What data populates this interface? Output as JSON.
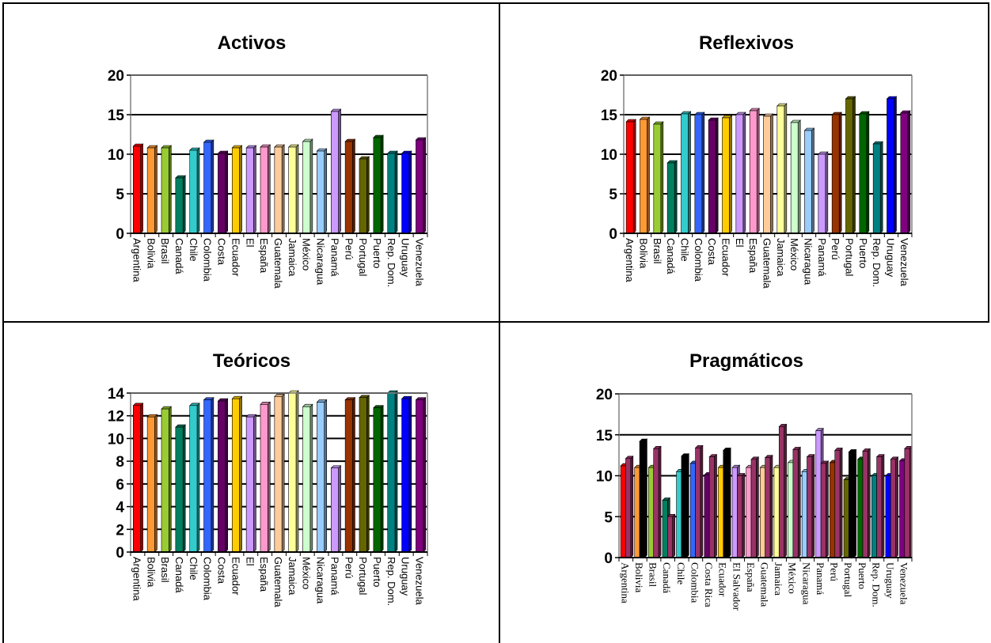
{
  "chart_data": [
    {
      "type": "bar",
      "title": "Activos",
      "ylim": [
        0,
        20
      ],
      "yticks": [
        0,
        5,
        10,
        15,
        20
      ],
      "grid": true,
      "categories": [
        "Argentina",
        "Bolivia",
        "Brasil",
        "Canadá",
        "Chile",
        "Colombia",
        "Costa",
        "Ecuador",
        "El",
        "España",
        "Guatemala",
        "Jamaica",
        "México",
        "Nicaragua",
        "Panamá",
        "Perú",
        "Portugal",
        "Puerto",
        "Rep. Dom.",
        "Uruguay",
        "Venezuela"
      ],
      "values": [
        11.0,
        10.8,
        10.8,
        7.0,
        10.5,
        11.5,
        10.1,
        10.8,
        10.8,
        10.9,
        10.9,
        10.9,
        11.6,
        10.4,
        15.4,
        11.6,
        9.4,
        12.1,
        10.1,
        10.1,
        11.8
      ],
      "colors": [
        "#ff0000",
        "#ff9933",
        "#99cc33",
        "#008060",
        "#33cccc",
        "#3366ff",
        "#660066",
        "#ffcc00",
        "#cc99ff",
        "#ff99cc",
        "#ffcc99",
        "#ffff99",
        "#ccffcc",
        "#99ccff",
        "#cc99ff",
        "#993300",
        "#666600",
        "#006600",
        "#008080",
        "#0000ff",
        "#800080"
      ]
    },
    {
      "type": "bar",
      "title": "Reflexivos",
      "ylim": [
        0,
        20
      ],
      "yticks": [
        0,
        5,
        10,
        15,
        20
      ],
      "grid": true,
      "categories": [
        "Argentina",
        "Bolivia",
        "Brasil",
        "Canadá",
        "Chile",
        "Colombia",
        "Costa",
        "Ecuador",
        "El",
        "España",
        "Guatemala",
        "Jamaica",
        "México",
        "Nicaragua",
        "Panamá",
        "Perú",
        "Portugal",
        "Puerto",
        "Rep. Dom.",
        "Uruguay",
        "Venezuela"
      ],
      "values": [
        14.1,
        14.4,
        13.8,
        8.9,
        15.1,
        15.0,
        14.3,
        14.6,
        15.0,
        15.5,
        14.8,
        16.1,
        14.0,
        13.0,
        10.0,
        15.0,
        17.0,
        15.1,
        11.3,
        17.0,
        15.2
      ],
      "colors": [
        "#ff0000",
        "#ff9933",
        "#99cc33",
        "#008060",
        "#33cccc",
        "#3366ff",
        "#660066",
        "#ffcc00",
        "#cc99ff",
        "#ff99cc",
        "#ffcc99",
        "#ffff99",
        "#ccffcc",
        "#99ccff",
        "#cc99ff",
        "#993300",
        "#666600",
        "#006600",
        "#008080",
        "#0000ff",
        "#800080"
      ]
    },
    {
      "type": "bar",
      "title": "Teóricos",
      "ylim": [
        0,
        14
      ],
      "yticks": [
        0,
        2,
        4,
        6,
        8,
        10,
        12,
        14
      ],
      "grid": true,
      "categories": [
        "Argentina",
        "Bolivia",
        "Brasil",
        "Canadá",
        "Chile",
        "Colombia",
        "Costa",
        "Ecuador",
        "El",
        "España",
        "Guatemala",
        "Jamaica",
        "México",
        "Nicaragua",
        "Panamá",
        "Perú",
        "Portugal",
        "Puerto",
        "Rep. Dom.",
        "Uruguay",
        "Venezuela"
      ],
      "values": [
        12.9,
        11.9,
        12.6,
        11.0,
        12.9,
        13.4,
        13.3,
        13.5,
        11.9,
        13.0,
        13.7,
        14.0,
        12.8,
        13.2,
        7.4,
        13.4,
        13.6,
        12.7,
        14.0,
        13.5,
        13.4
      ],
      "colors": [
        "#ff0000",
        "#ff9933",
        "#99cc33",
        "#008060",
        "#33cccc",
        "#3366ff",
        "#660066",
        "#ffcc00",
        "#cc99ff",
        "#ff99cc",
        "#ffcc99",
        "#ffff99",
        "#ccffcc",
        "#99ccff",
        "#cc99ff",
        "#993300",
        "#666600",
        "#006600",
        "#008080",
        "#0000ff",
        "#800080"
      ]
    },
    {
      "type": "bar",
      "title": "Pragmáticos",
      "ylim": [
        0,
        20
      ],
      "yticks": [
        0,
        5,
        10,
        15,
        20
      ],
      "grid": true,
      "categories": [
        "Argentina",
        "Bolivia",
        "Brasil",
        "Canadá",
        "Chile",
        "Colombia",
        "Costa Rica",
        "Ecuador",
        "El Salvador",
        "España",
        "Guatemala",
        "Jamaica",
        "México",
        "Nicaragua",
        "Panamá",
        "Perú",
        "Portugal",
        "Puerto",
        "Rep. Dom.",
        "Uruguay",
        "Venezuela"
      ],
      "series": [
        {
          "values": [
            11.2,
            11.0,
            11.0,
            7.0,
            10.5,
            11.5,
            10.1,
            11.0,
            11.0,
            11.0,
            11.0,
            11.0,
            11.6,
            10.5,
            15.5,
            11.6,
            9.5,
            12.0,
            10.0,
            10.0,
            11.8
          ]
        },
        {
          "values": [
            12.1,
            14.2,
            13.3,
            5.0,
            12.4,
            13.4,
            12.3,
            13.1,
            10.0,
            12.0,
            12.2,
            16.0,
            13.2,
            12.3,
            11.5,
            13.1,
            12.9,
            13.0,
            12.3,
            12.0,
            13.3
          ]
        }
      ],
      "colors": [
        "#ff0000",
        "#ff9933",
        "#99cc33",
        "#008060",
        "#33cccc",
        "#3366ff",
        "#660066",
        "#ffcc00",
        "#cc99ff",
        "#ff99cc",
        "#ffcc99",
        "#ffff99",
        "#ccffcc",
        "#99ccff",
        "#cc99ff",
        "#993300",
        "#666600",
        "#006600",
        "#008080",
        "#0000ff",
        "#800080"
      ],
      "second_series_colors": [
        "#993366",
        "#000000",
        "#993366",
        "#993366",
        "#000000",
        "#993366",
        "#993366",
        "#000000",
        "#993366",
        "#993366",
        "#993366",
        "#993366",
        "#993366",
        "#993366",
        "#993366",
        "#993366",
        "#000000",
        "#993366",
        "#993366",
        "#993366",
        "#993366"
      ]
    }
  ]
}
